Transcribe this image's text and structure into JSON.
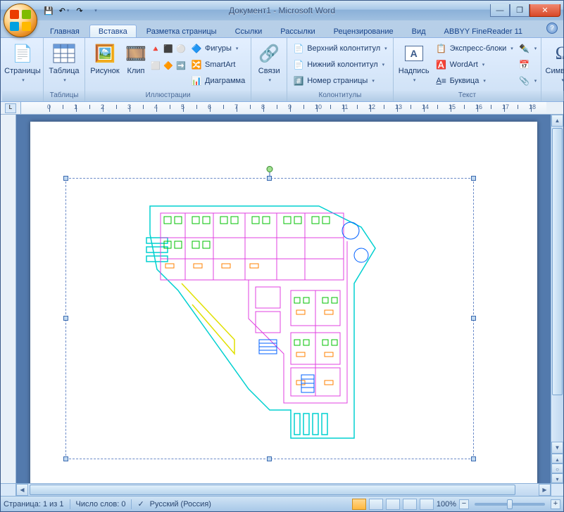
{
  "titlebar": {
    "title": "Документ1 - Microsoft Word"
  },
  "tabs": {
    "items": [
      "Главная",
      "Вставка",
      "Разметка страницы",
      "Ссылки",
      "Рассылки",
      "Рецензирование",
      "Вид",
      "ABBYY FineReader 11"
    ],
    "active_index": 1
  },
  "ribbon": {
    "groups": {
      "pages": {
        "label": "",
        "btn": "Страницы"
      },
      "tables": {
        "label": "Таблицы",
        "btn": "Таблица"
      },
      "illustrations": {
        "label": "Иллюстрации",
        "picture": "Рисунок",
        "clip": "Клип",
        "shapes": "Фигуры",
        "smartart": "SmartArt",
        "chart": "Диаграмма"
      },
      "links": {
        "label": "",
        "btn": "Связи"
      },
      "headers": {
        "label": "Колонтитулы",
        "header": "Верхний колонтитул",
        "footer": "Нижний колонтитул",
        "pagenum": "Номер страницы"
      },
      "text": {
        "label": "Текст",
        "textbox": "Надпись",
        "quickparts": "Экспресс-блоки",
        "wordart": "WordArt",
        "dropcap": "Буквица"
      },
      "symbols": {
        "label": "",
        "btn": "Символы"
      }
    }
  },
  "statusbar": {
    "page": "Страница: 1 из 1",
    "words": "Число слов: 0",
    "language": "Русский (Россия)",
    "zoom": "100%"
  },
  "colors": {
    "accent": "#3a6ab0",
    "ribbon_bg": "#cde0f5",
    "magenta": "#e040e0",
    "cyan": "#00d0d0",
    "green": "#00c000",
    "yellow": "#e0e000",
    "orange": "#ff8000",
    "blue": "#0060ff"
  }
}
